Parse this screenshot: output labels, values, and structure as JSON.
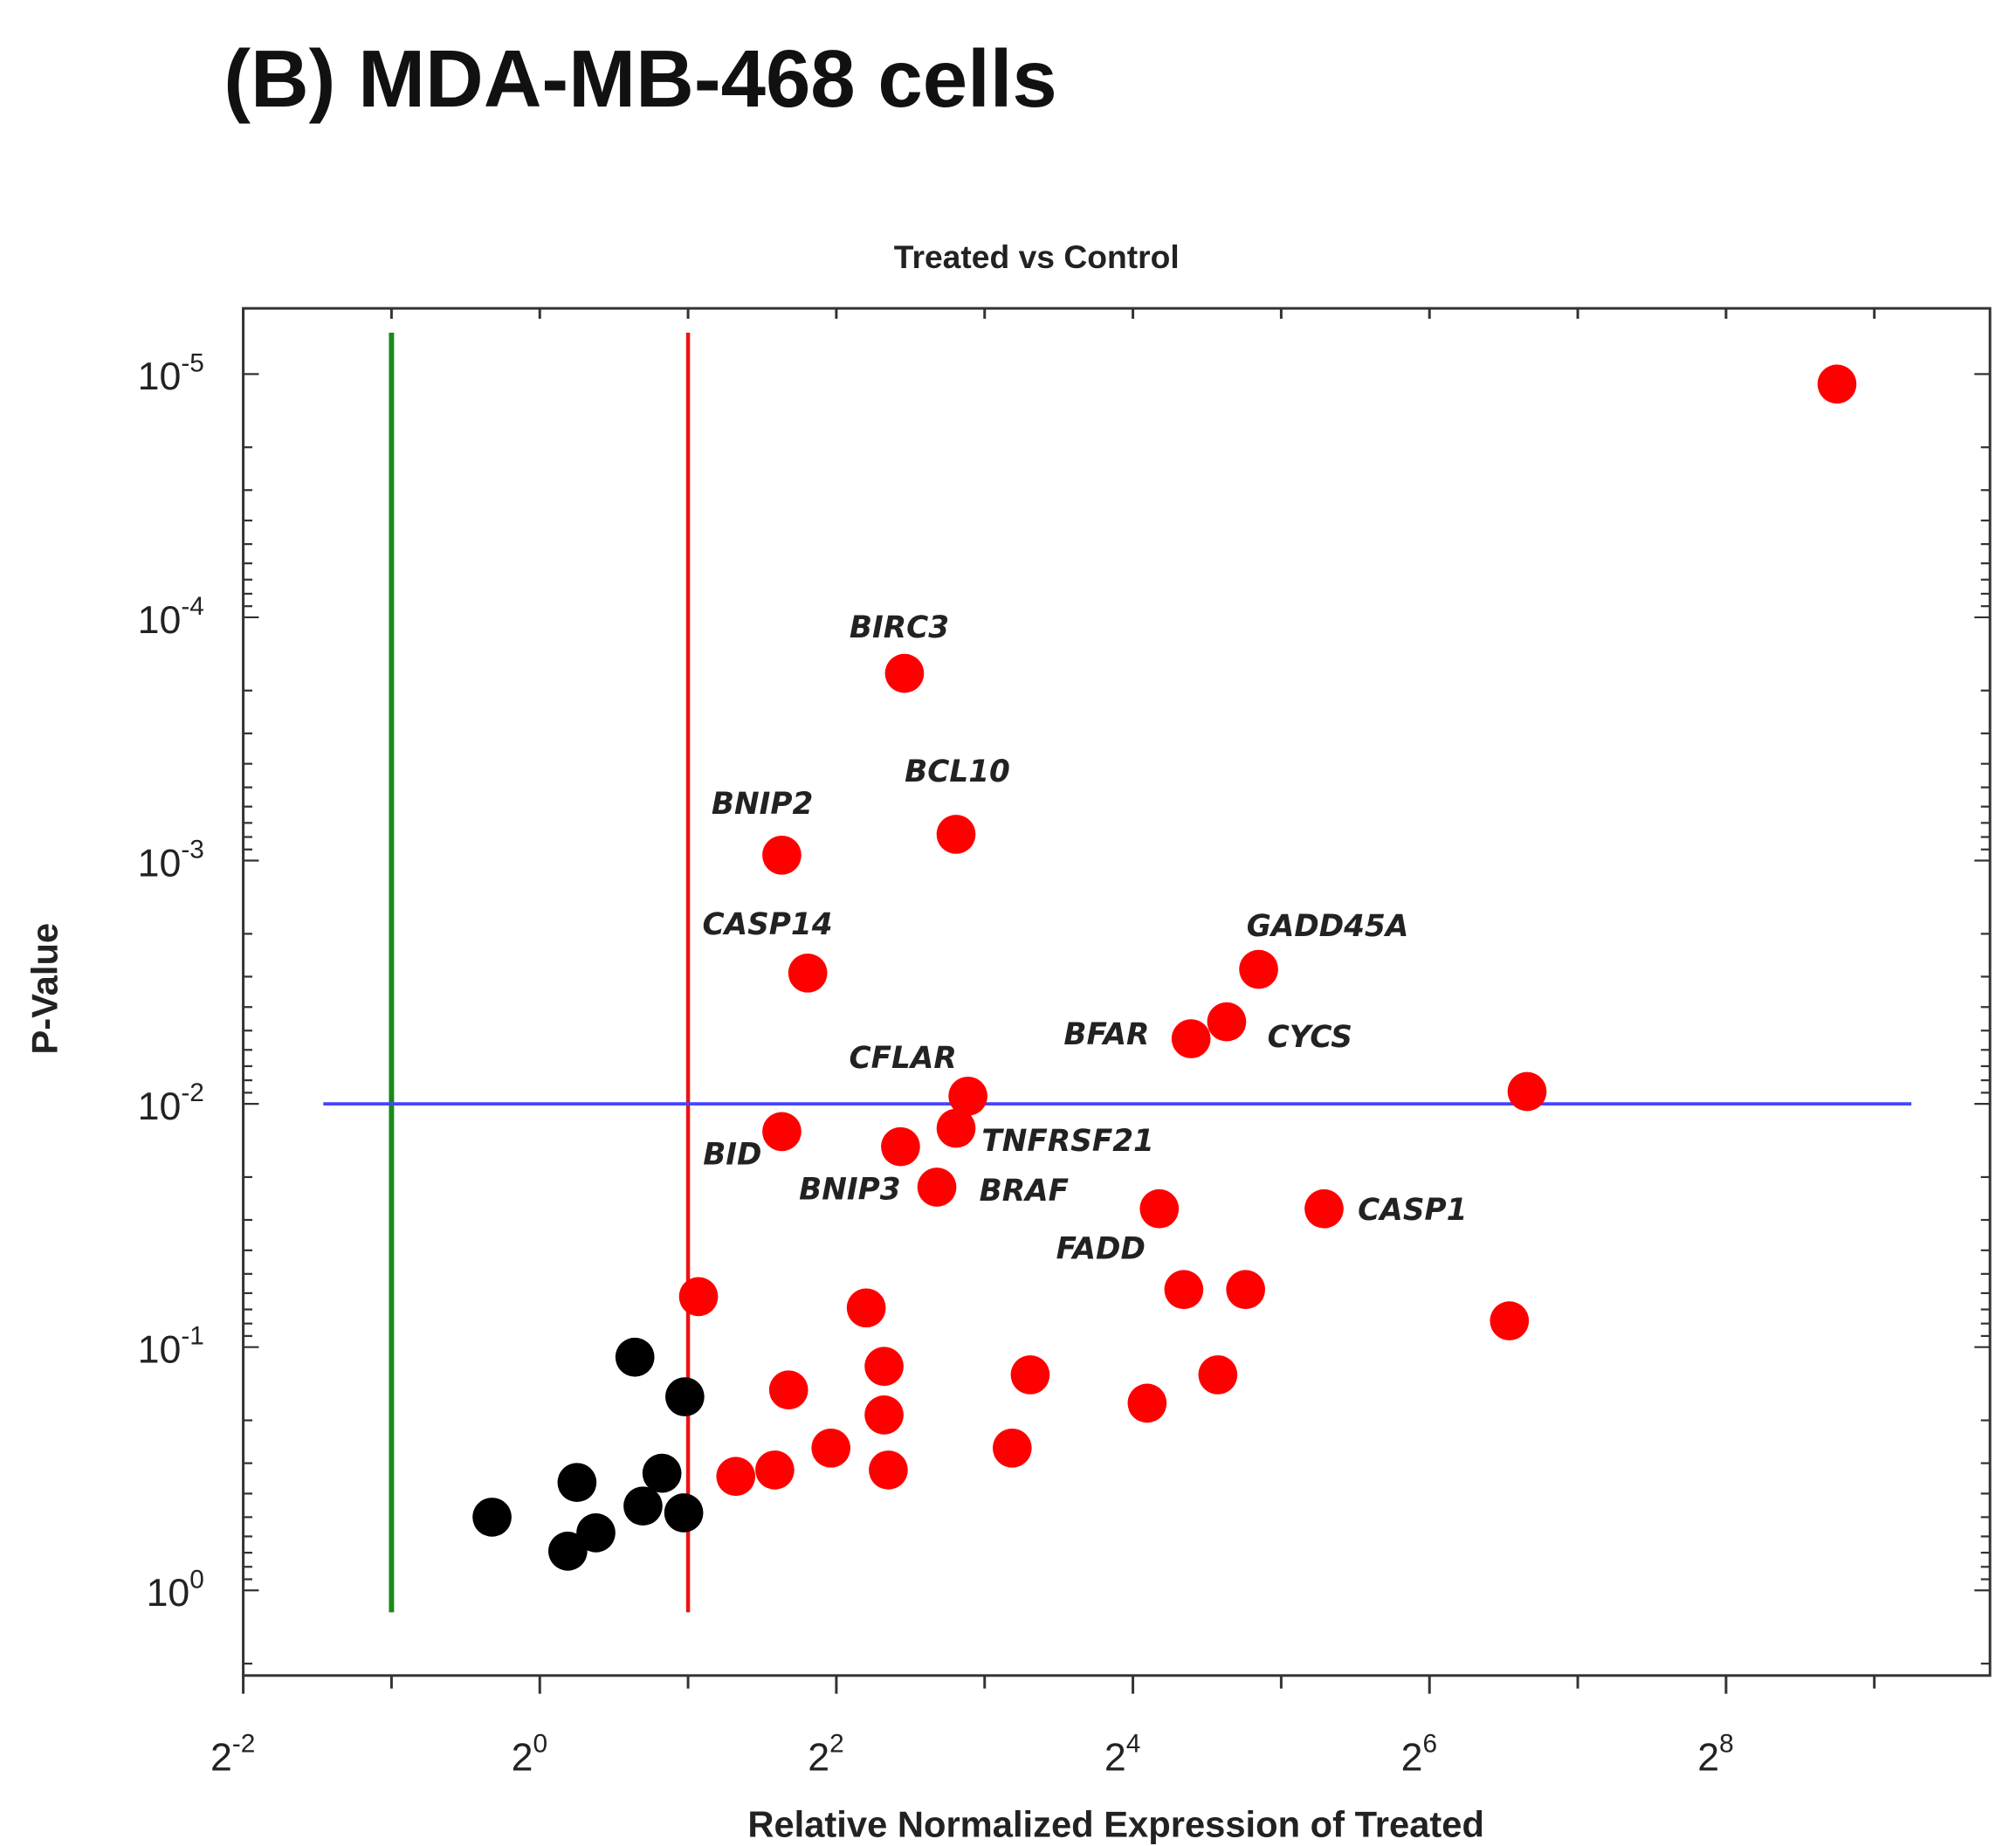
{
  "chart_data": {
    "type": "scatter",
    "panel_title": "(B) MDA-MB-468 cells",
    "title": "Treated vs Control",
    "xlabel": "Relative Normalized Expression of Treated",
    "ylabel": "P-Value",
    "x_scale": "log2",
    "y_scale": "log10-inverted",
    "xlim_log2": [
      -2,
      9.78
    ],
    "ylim_neglog10": [
      -0.35,
      5.27
    ],
    "x_ticks": [
      {
        "exp": -2,
        "base": "2",
        "sup": "-2"
      },
      {
        "exp": 0,
        "base": "2",
        "sup": "0"
      },
      {
        "exp": 2,
        "base": "2",
        "sup": "2"
      },
      {
        "exp": 4,
        "base": "2",
        "sup": "4"
      },
      {
        "exp": 6,
        "base": "2",
        "sup": "6"
      },
      {
        "exp": 8,
        "base": "2",
        "sup": "8"
      }
    ],
    "y_ticks": [
      {
        "exp": 0,
        "base": "10",
        "sup": "0"
      },
      {
        "exp": 1,
        "base": "10",
        "sup": "-1"
      },
      {
        "exp": 2,
        "base": "10",
        "sup": "-2"
      },
      {
        "exp": 3,
        "base": "10",
        "sup": "-3"
      },
      {
        "exp": 4,
        "base": "10",
        "sup": "-4"
      },
      {
        "exp": 5,
        "base": "10",
        "sup": "-5"
      }
    ],
    "thresholds": {
      "fold_down": {
        "value": 0.5,
        "color": "#1a8a1a"
      },
      "fold_up": {
        "value": 2,
        "color": "#ee1111"
      },
      "p_value": {
        "value": 0.01,
        "color": "#4444ff"
      }
    },
    "colors": {
      "upregulated": "#ff0000",
      "unchanged": "#000000"
    },
    "series": [
      {
        "name": "upregulated",
        "points": [
          {
            "fold": 430,
            "p": 1.1e-05,
            "label": ""
          },
          {
            "fold": 5.5,
            "p": 0.00017,
            "label": "BIRC3"
          },
          {
            "fold": 7.0,
            "p": 0.00078,
            "label": "BCL10"
          },
          {
            "fold": 3.1,
            "p": 0.00095,
            "label": "BNIP2"
          },
          {
            "fold": 3.5,
            "p": 0.0029,
            "label": "CASP14"
          },
          {
            "fold": 28.8,
            "p": 0.0028,
            "label": "GADD45A"
          },
          {
            "fold": 24.8,
            "p": 0.0046,
            "label": "CYCS"
          },
          {
            "fold": 21.0,
            "p": 0.0054,
            "label": "BFAR"
          },
          {
            "fold": 7.4,
            "p": 0.0093,
            "label": "CFLAR"
          },
          {
            "fold": 101,
            "p": 0.0089,
            "label": ""
          },
          {
            "fold": 3.1,
            "p": 0.013,
            "label": "BID"
          },
          {
            "fold": 7.0,
            "p": 0.0126,
            "label": "TNFRSF21"
          },
          {
            "fold": 5.4,
            "p": 0.015,
            "label": "BNIP3"
          },
          {
            "fold": 6.4,
            "p": 0.022,
            "label": "BRAF"
          },
          {
            "fold": 18.1,
            "p": 0.027,
            "label": "FADD"
          },
          {
            "fold": 39.1,
            "p": 0.027,
            "label": "CASP1"
          },
          {
            "fold": 2.1,
            "p": 0.062,
            "label": ""
          },
          {
            "fold": 4.6,
            "p": 0.069,
            "label": ""
          },
          {
            "fold": 20.3,
            "p": 0.058,
            "label": ""
          },
          {
            "fold": 27.1,
            "p": 0.058,
            "label": ""
          },
          {
            "fold": 93,
            "p": 0.078,
            "label": ""
          },
          {
            "fold": 5.0,
            "p": 0.12,
            "label": ""
          },
          {
            "fold": 9.9,
            "p": 0.13,
            "label": ""
          },
          {
            "fold": 23.8,
            "p": 0.13,
            "label": ""
          },
          {
            "fold": 3.2,
            "p": 0.15,
            "label": ""
          },
          {
            "fold": 5.0,
            "p": 0.19,
            "label": ""
          },
          {
            "fold": 17.1,
            "p": 0.17,
            "label": ""
          },
          {
            "fold": 3.9,
            "p": 0.26,
            "label": ""
          },
          {
            "fold": 9.1,
            "p": 0.26,
            "label": ""
          },
          {
            "fold": 3.0,
            "p": 0.32,
            "label": ""
          },
          {
            "fold": 5.1,
            "p": 0.32,
            "label": ""
          },
          {
            "fold": 2.5,
            "p": 0.34,
            "label": ""
          }
        ]
      },
      {
        "name": "unchanged",
        "points": [
          {
            "fold": 1.56,
            "p": 0.11
          },
          {
            "fold": 1.97,
            "p": 0.16
          },
          {
            "fold": 1.77,
            "p": 0.33
          },
          {
            "fold": 1.19,
            "p": 0.36
          },
          {
            "fold": 1.62,
            "p": 0.45
          },
          {
            "fold": 1.96,
            "p": 0.48
          },
          {
            "fold": 0.8,
            "p": 0.5
          },
          {
            "fold": 1.3,
            "p": 0.58
          },
          {
            "fold": 1.14,
            "p": 0.69
          }
        ]
      }
    ]
  }
}
